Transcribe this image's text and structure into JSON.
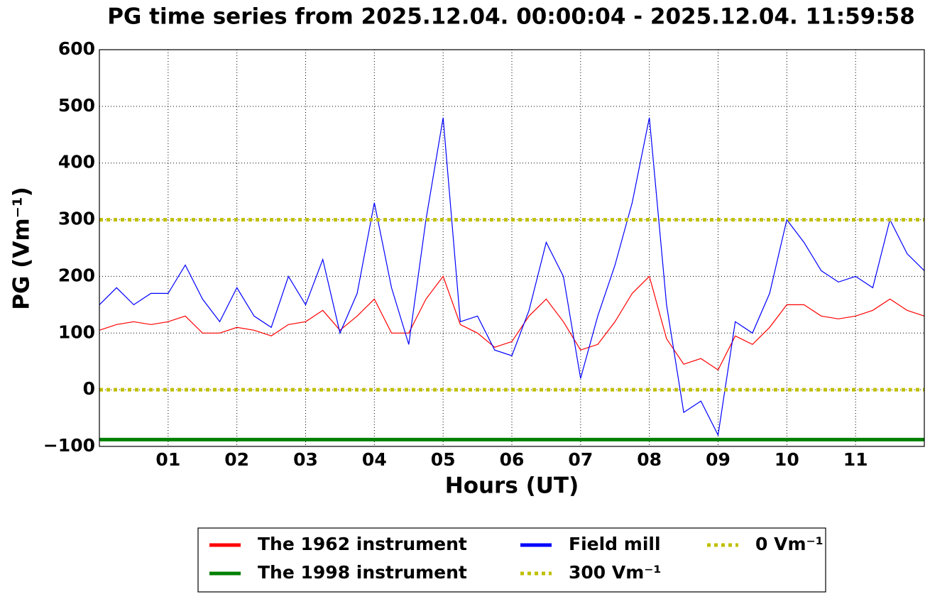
{
  "chart_data": {
    "type": "line",
    "title": "PG time series from 2025.12.04. 00:00:04 - 2025.12.04. 11:59:58",
    "xlabel": "Hours (UT)",
    "ylabel": "PG (Vm⁻¹)",
    "xlim": [
      0,
      12
    ],
    "ylim": [
      -100,
      600
    ],
    "xticks": [
      {
        "value": 1,
        "label": "01"
      },
      {
        "value": 2,
        "label": "02"
      },
      {
        "value": 3,
        "label": "03"
      },
      {
        "value": 4,
        "label": "04"
      },
      {
        "value": 5,
        "label": "05"
      },
      {
        "value": 6,
        "label": "06"
      },
      {
        "value": 7,
        "label": "07"
      },
      {
        "value": 8,
        "label": "08"
      },
      {
        "value": 9,
        "label": "09"
      },
      {
        "value": 10,
        "label": "10"
      },
      {
        "value": 11,
        "label": "11"
      }
    ],
    "yticks": [
      {
        "value": -100,
        "label": "−100"
      },
      0,
      100,
      200,
      300,
      400,
      500,
      600
    ],
    "grid": true,
    "legend": "below",
    "series": [
      {
        "name": "The 1962 instrument",
        "color": "#ff0000",
        "style": "solid",
        "width": 1.2,
        "x": [
          0,
          0.25,
          0.5,
          0.75,
          1,
          1.25,
          1.5,
          1.75,
          2,
          2.25,
          2.5,
          2.75,
          3,
          3.25,
          3.5,
          3.75,
          4,
          4.25,
          4.5,
          4.75,
          5,
          5.25,
          5.5,
          5.75,
          6,
          6.25,
          6.5,
          6.75,
          7,
          7.25,
          7.5,
          7.75,
          8,
          8.25,
          8.5,
          8.75,
          9,
          9.25,
          9.5,
          9.75,
          10,
          10.25,
          10.5,
          10.75,
          11,
          11.25,
          11.5,
          11.75,
          12
        ],
        "values": [
          105,
          115,
          120,
          115,
          120,
          130,
          100,
          100,
          110,
          105,
          95,
          115,
          120,
          140,
          105,
          130,
          160,
          100,
          100,
          160,
          200,
          115,
          100,
          75,
          85,
          130,
          160,
          120,
          70,
          80,
          120,
          170,
          200,
          90,
          45,
          55,
          35,
          95,
          80,
          110,
          150,
          150,
          130,
          125,
          130,
          140,
          160,
          140,
          130
        ]
      },
      {
        "name": "The 1998 instrument",
        "color": "#008000",
        "style": "solid",
        "width": 5,
        "x": [
          0,
          12
        ],
        "values": [
          -88,
          -88
        ]
      },
      {
        "name": "Field mill",
        "color": "#0000ff",
        "style": "solid",
        "width": 1.2,
        "x": [
          0,
          0.25,
          0.5,
          0.75,
          1,
          1.25,
          1.5,
          1.75,
          2,
          2.25,
          2.5,
          2.75,
          3,
          3.25,
          3.5,
          3.75,
          4,
          4.25,
          4.5,
          4.75,
          5,
          5.25,
          5.5,
          5.75,
          6,
          6.25,
          6.5,
          6.75,
          7,
          7.25,
          7.5,
          7.75,
          8,
          8.25,
          8.5,
          8.75,
          9,
          9.25,
          9.5,
          9.75,
          10,
          10.25,
          10.5,
          10.75,
          11,
          11.25,
          11.5,
          11.75,
          12
        ],
        "values": [
          150,
          180,
          150,
          170,
          170,
          220,
          160,
          120,
          180,
          130,
          110,
          200,
          150,
          230,
          100,
          170,
          330,
          180,
          80,
          300,
          480,
          120,
          130,
          70,
          60,
          140,
          260,
          200,
          20,
          130,
          220,
          330,
          480,
          150,
          -40,
          -20,
          -80,
          120,
          100,
          170,
          300,
          260,
          210,
          190,
          200,
          180,
          300,
          240,
          210
        ]
      },
      {
        "name": "300 Vm⁻¹",
        "color": "#bfbf00",
        "style": "dotted",
        "width": 5,
        "x": [
          0,
          12
        ],
        "values": [
          300,
          300
        ]
      },
      {
        "name": "0 Vm⁻¹",
        "color": "#bfbf00",
        "style": "dotted",
        "width": 5,
        "x": [
          0,
          12
        ],
        "values": [
          0,
          0
        ]
      }
    ]
  }
}
